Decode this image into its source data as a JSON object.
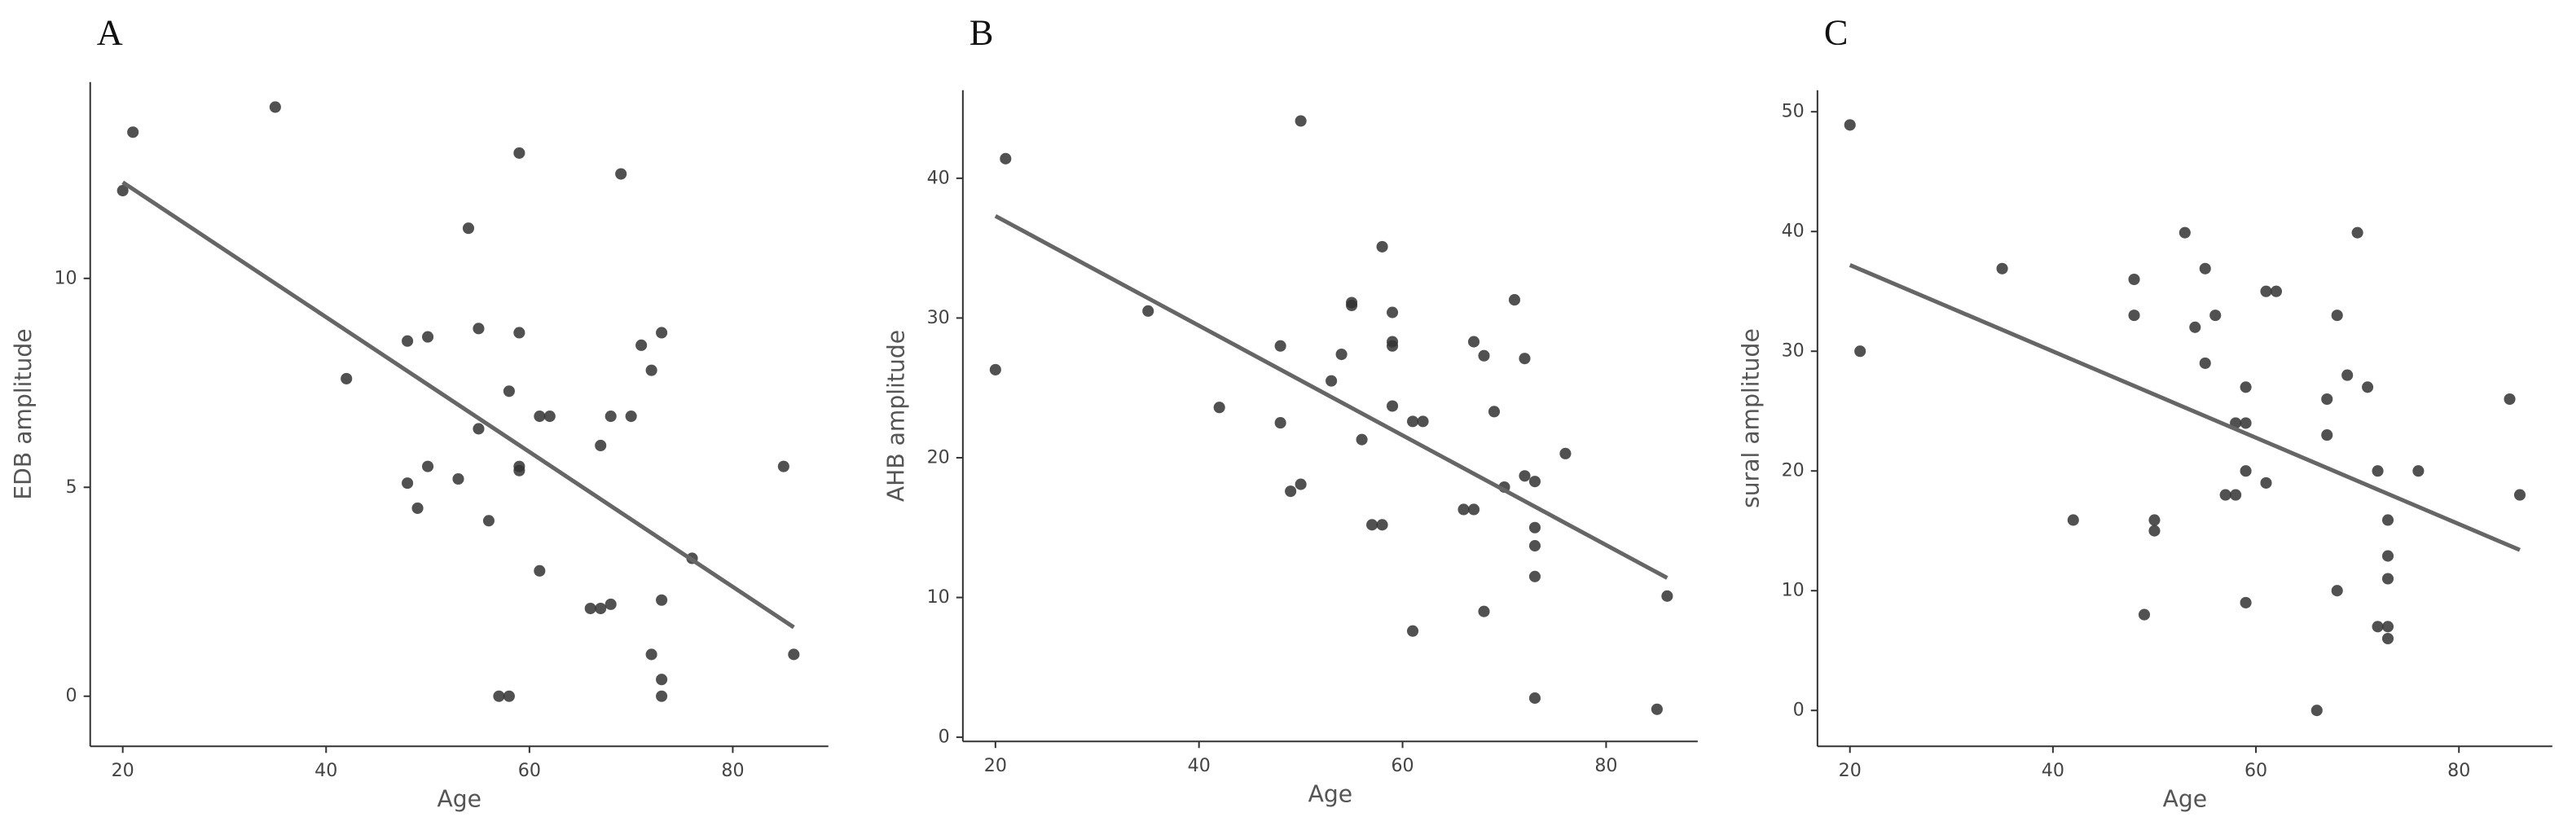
{
  "chart_data": [
    {
      "type": "scatter",
      "title": "A",
      "x_label": "Age",
      "y_label": "EDB amplitude",
      "color": "#333333",
      "fit_color": "#666666",
      "x": [
        20,
        21,
        35,
        42,
        48,
        50,
        48,
        49,
        50,
        53,
        54,
        55,
        55,
        56,
        57,
        58,
        58,
        59,
        59,
        59,
        59,
        61,
        61,
        62,
        66,
        67,
        68,
        67,
        68,
        69,
        70,
        71,
        72,
        72,
        73,
        73,
        73,
        73,
        76,
        85,
        86
      ],
      "values": [
        12.1,
        13.5,
        14.1,
        7.6,
        8.5,
        8.6,
        5.1,
        4.5,
        5.5,
        5.2,
        11.2,
        8.8,
        6.4,
        4.2,
        0,
        0,
        7.3,
        13,
        8.7,
        5.5,
        5.4,
        3,
        6.7,
        6.7,
        2.1,
        2.1,
        2.2,
        6,
        6.7,
        12.5,
        6.7,
        8.4,
        7.8,
        1,
        8.7,
        2.3,
        0.4,
        0,
        3.3,
        5.5,
        1
      ],
      "fit": {
        "x": [
          20,
          86
        ],
        "y": [
          12.3,
          1.65
        ]
      },
      "xlim": [
        16.8,
        89.4
      ],
      "ylim": [
        -1.2,
        14.7
      ],
      "xticks": [
        20,
        40,
        60,
        80
      ],
      "yticks": [
        0,
        5,
        10
      ]
    },
    {
      "type": "scatter",
      "title": "B",
      "x_label": "Age",
      "y_label": "AHB amplitude",
      "color": "#333333",
      "fit_color": "#666666",
      "x": [
        20,
        21,
        35,
        42,
        48,
        48,
        49,
        50,
        50,
        53,
        54,
        55,
        55,
        56,
        57,
        58,
        58,
        59,
        59,
        59,
        59,
        61,
        61,
        62,
        66,
        67,
        67,
        68,
        68,
        69,
        70,
        71,
        72,
        72,
        73,
        73,
        73,
        73,
        73,
        76,
        85,
        86
      ],
      "values": [
        26.3,
        41.4,
        30.5,
        23.6,
        28,
        22.5,
        17.6,
        18.1,
        44.1,
        25.5,
        27.4,
        30.9,
        31.1,
        21.3,
        15.2,
        15.2,
        35.1,
        30.4,
        28.3,
        28,
        23.7,
        7.6,
        22.6,
        22.6,
        16.3,
        16.3,
        28.3,
        27.3,
        9,
        23.3,
        17.9,
        31.3,
        27.1,
        18.7,
        18.3,
        15,
        13.7,
        11.5,
        2.8,
        20.3,
        2,
        10.1
      ],
      "fit": {
        "x": [
          20,
          86
        ],
        "y": [
          37.3,
          11.4
        ]
      },
      "xlim": [
        16.8,
        89
      ],
      "ylim": [
        -0.3,
        46.3
      ],
      "xticks": [
        20,
        40,
        60,
        80
      ],
      "yticks": [
        0,
        10,
        20,
        30,
        40
      ]
    },
    {
      "type": "scatter",
      "title": "C",
      "x_label": "Age",
      "y_label": "sural amplitude",
      "color": "#333333",
      "fit_color": "#666666",
      "x": [
        20,
        21,
        35,
        42,
        48,
        48,
        49,
        50,
        50,
        53,
        54,
        55,
        55,
        56,
        57,
        58,
        58,
        59,
        59,
        59,
        59,
        61,
        61,
        62,
        66,
        67,
        67,
        68,
        68,
        69,
        70,
        71,
        72,
        72,
        73,
        73,
        73,
        73,
        73,
        76,
        85,
        86
      ],
      "values": [
        48.9,
        30,
        36.9,
        15.9,
        36,
        33,
        8,
        15.9,
        15,
        39.9,
        32,
        36.9,
        29,
        33,
        18,
        18,
        24,
        24,
        27,
        20,
        9,
        19,
        35,
        35,
        0,
        26,
        23,
        33,
        10,
        28,
        39.9,
        27,
        20,
        7,
        15.9,
        12.9,
        11,
        7,
        6,
        20,
        26,
        18
      ],
      "fit": {
        "x": [
          20,
          86
        ],
        "y": [
          37.2,
          13.4
        ]
      },
      "xlim": [
        16.8,
        89.2
      ],
      "ylim": [
        -3,
        51.8
      ],
      "xticks": [
        20,
        40,
        60,
        80
      ],
      "yticks": [
        0,
        10,
        20,
        30,
        40,
        50
      ]
    }
  ]
}
